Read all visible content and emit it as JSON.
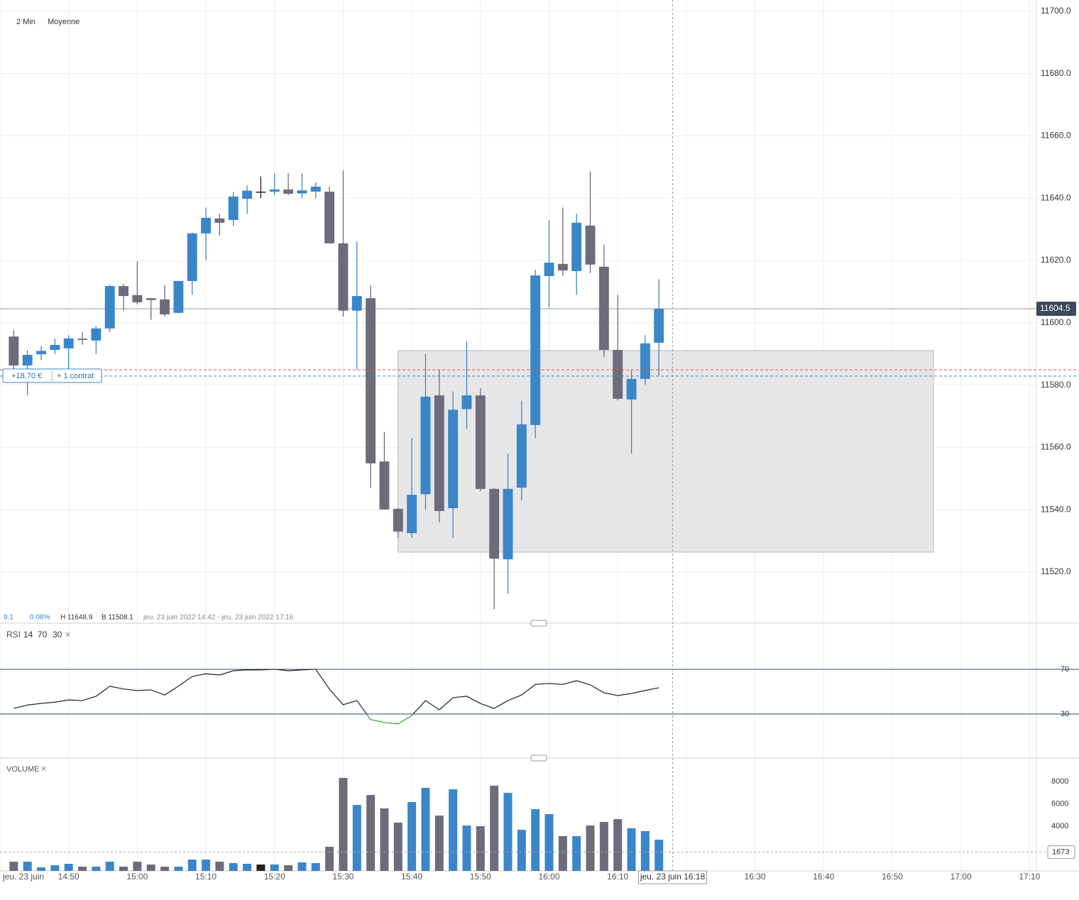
{
  "ui": {
    "interval": "2 Min",
    "style": "Moyenne",
    "stats": {
      "change": "9.1",
      "change_pct": "0.08%",
      "high": "H 11648.9",
      "low": "B 11508.1",
      "range": "jeu. 23 juin 2022 14:42 - jeu. 23 juin 2022 17:16"
    },
    "position": {
      "pnl": "+18,70 €",
      "size": "+ 1 contrat"
    },
    "rsi_title": "RSI",
    "rsi_params": [
      "14",
      "70",
      "30"
    ],
    "volume_title": "VOLUME",
    "close_icon": "×"
  },
  "chart_data": [
    {
      "type": "candlestick",
      "x": [
        "14:42",
        "14:44",
        "14:46",
        "14:48",
        "14:50",
        "14:52",
        "14:54",
        "14:56",
        "14:58",
        "15:00",
        "15:02",
        "15:04",
        "15:06",
        "15:08",
        "15:10",
        "15:12",
        "15:14",
        "15:16",
        "15:18",
        "15:20",
        "15:22",
        "15:24",
        "15:26",
        "15:28",
        "15:30",
        "15:32",
        "15:34",
        "15:36",
        "15:38",
        "15:40",
        "15:42",
        "15:44",
        "15:46",
        "15:48",
        "15:50",
        "15:52",
        "15:54",
        "15:56",
        "15:58",
        "16:00",
        "16:02",
        "16:04",
        "16:06",
        "16:08",
        "16:10",
        "16:12",
        "16:14",
        "16:16"
      ],
      "open": [
        11595.6,
        11586.3,
        11589.9,
        11591.3,
        11591.8,
        11594.9,
        11594.3,
        11598.2,
        11611.8,
        11608.9,
        11607.9,
        11607.5,
        11603.2,
        11613.4,
        11628.7,
        11633.5,
        11633.0,
        11639.8,
        11642.1,
        11642.1,
        11642.8,
        11641.5,
        11642.1,
        11642.1,
        11625.5,
        11603.9,
        11607.9,
        11555.5,
        11540.3,
        11532.5,
        11545.0,
        11576.7,
        11540.5,
        11572.3,
        11576.7,
        11546.7,
        11524.1,
        11547.1,
        11567.2,
        11615.0,
        11618.9,
        11616.6,
        11631.2,
        11618.0,
        11591.3,
        11575.4,
        11582.0,
        11593.6
      ],
      "high": [
        11597.7,
        11591.3,
        11592.5,
        11594.9,
        11596.0,
        11597.0,
        11599.0,
        11612.2,
        11612.5,
        11619.8,
        11608.0,
        11612.0,
        11613.5,
        11629.0,
        11637.0,
        11635.0,
        11642.0,
        11644.0,
        11647.0,
        11648.0,
        11648.0,
        11648.0,
        11645.0,
        11643.7,
        11648.9,
        11626.0,
        11612.0,
        11565.0,
        11540.5,
        11563.0,
        11590.0,
        11585.0,
        11578.0,
        11594.0,
        11579.0,
        11547.0,
        11558.0,
        11575.0,
        11617.0,
        11633.0,
        11637.0,
        11635.0,
        11648.6,
        11625.0,
        11609.0,
        11585.0,
        11596.0,
        11614.0
      ],
      "low": [
        11585.2,
        11576.8,
        11588.0,
        11590.0,
        11584.0,
        11593.0,
        11590.0,
        11597.0,
        11604.0,
        11605.9,
        11601.0,
        11602.0,
        11603.0,
        11609.0,
        11620.0,
        11628.0,
        11631.0,
        11635.0,
        11640.0,
        11641.0,
        11641.0,
        11640.0,
        11640.0,
        11625.5,
        11602.0,
        11585.0,
        11547.0,
        11540.0,
        11531.0,
        11531.0,
        11540.0,
        11536.0,
        11531.0,
        11566.0,
        11546.0,
        11508.1,
        11513.0,
        11543.0,
        11563.0,
        11605.0,
        11615.0,
        11609.0,
        11616.0,
        11589.0,
        11575.0,
        11558.0,
        11580.0,
        11583.0
      ],
      "close": [
        11586.3,
        11589.7,
        11591.0,
        11592.9,
        11595.0,
        11594.5,
        11598.2,
        11611.8,
        11608.6,
        11606.6,
        11607.3,
        11602.7,
        11613.4,
        11628.7,
        11633.7,
        11632.1,
        11640.5,
        11642.4,
        11642.1,
        11642.8,
        11641.4,
        11642.5,
        11643.7,
        11625.5,
        11603.9,
        11608.6,
        11554.9,
        11540.1,
        11533.0,
        11544.8,
        11576.3,
        11539.6,
        11572.1,
        11576.7,
        11546.7,
        11524.3,
        11546.7,
        11567.4,
        11615.2,
        11619.3,
        11616.8,
        11632.1,
        11618.7,
        11591.3,
        11575.6,
        11582.0,
        11593.4,
        11604.5
      ],
      "up_color": "#3b86c9",
      "down_color": "#6e6c7a",
      "flat_color": "#222222",
      "xlim": [
        "14:40",
        "17:11"
      ],
      "ylim": [
        11503.6,
        11703.6
      ],
      "xticks": [
        {
          "value": "14:40",
          "label": "jeu. 23 juin"
        },
        "14:50",
        "15:00",
        "15:10",
        "15:20",
        "15:30",
        "15:40",
        "15:50",
        "16:00",
        "16:10",
        "16:20",
        "16:30",
        "16:40",
        "16:50",
        "17:00",
        "17:10"
      ],
      "yticks": [
        {
          "value": 11520,
          "label": "11520.0"
        },
        {
          "value": 11540,
          "label": "11540.0"
        },
        {
          "value": 11560,
          "label": "11560.0"
        },
        {
          "value": 11580,
          "label": "11580.0"
        },
        {
          "value": 11600,
          "label": "11600.0"
        },
        {
          "value": 11620,
          "label": "11620.0"
        },
        {
          "value": 11640,
          "label": "11640.0"
        },
        {
          "value": 11660,
          "label": "11660.0"
        },
        {
          "value": 11680,
          "label": "11680.0"
        },
        {
          "value": 11700,
          "label": "11700.0"
        }
      ],
      "grid": true,
      "last_price": {
        "value": 11604.5,
        "label": "11604.5"
      },
      "levels": [
        {
          "value": 11584.9,
          "color": "#d9534f"
        },
        {
          "value": 11582.9,
          "color": "#3b86c9"
        }
      ],
      "zone": {
        "start": "15:38",
        "end": "16:56",
        "high": 11591.1,
        "low": 11526.4
      },
      "crosshair": {
        "x": "16:18",
        "label": "jeu. 23 juin 16:18"
      }
    },
    {
      "type": "line",
      "values": [
        35,
        38,
        39.5,
        40.6,
        42.6,
        42,
        45.9,
        54.8,
        52.4,
        51,
        51.6,
        47,
        55,
        63.6,
        66,
        64.9,
        68.7,
        69.4,
        69.4,
        70,
        68.7,
        69.4,
        70,
        52.2,
        38.3,
        42,
        25,
        22.4,
        21.1,
        28.7,
        42,
        33.7,
        44.6,
        45.9,
        39.4,
        35,
        42,
        47,
        56.5,
        57.3,
        56.5,
        59.8,
        56,
        49,
        46.5,
        48.4,
        51,
        53.5
      ],
      "color": "#222222",
      "low_color": "#2ca02c",
      "ylim": [
        -9.4,
        106.8
      ],
      "yticks": [
        70,
        30
      ],
      "band_color": "#2b4a6f"
    },
    {
      "type": "bar",
      "values": [
        825,
        825,
        320,
        510,
        635,
        380,
        380,
        825,
        380,
        825,
        570,
        380,
        380,
        1015,
        1015,
        825,
        700,
        635,
        570,
        570,
        510,
        760,
        700,
        2160,
        8320,
        5900,
        6790,
        5590,
        4320,
        6160,
        7430,
        4950,
        7300,
        4060,
        4000,
        7620,
        6980,
        3680,
        5520,
        5080,
        3110,
        3110,
        4060,
        4380,
        4630,
        3810,
        3560,
        2790
      ],
      "ylim": [
        0,
        9650
      ],
      "yticks": [
        4000,
        6000,
        8000
      ],
      "reference": 1673
    }
  ]
}
